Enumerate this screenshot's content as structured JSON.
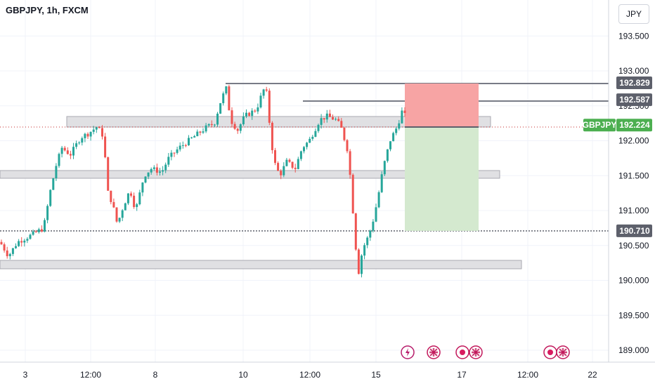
{
  "header": {
    "symbol": "GBPJPY, 1h, FXCM",
    "currency": "JPY"
  },
  "chart_data": {
    "type": "candlestick",
    "symbol": "GBPJPY",
    "interval": "1h",
    "exchange": "FXCM",
    "ylim": [
      188.9,
      193.95
    ],
    "yticks": [
      193.5,
      193.0,
      192.5,
      192.0,
      191.5,
      191.0,
      190.5,
      190.0,
      189.5,
      189.0
    ],
    "ytick_labels": [
      "193.500",
      "193.000",
      "192.500",
      "192.000",
      "191.500",
      "191.000",
      "190.500",
      "190.000",
      "189.500",
      "189.000"
    ],
    "xticks": [
      "3",
      "12:00",
      "8",
      "10",
      "12:00",
      "15",
      "17",
      "12:00",
      "22"
    ],
    "price_tags": [
      {
        "label": "192.829",
        "value": 192.829,
        "color": "#5d606b"
      },
      {
        "label": "192.587",
        "value": 192.587,
        "color": "#5d606b"
      },
      {
        "label": "192.224",
        "value": 192.224,
        "color": "#4caf50",
        "symbol": "GBPJPY"
      },
      {
        "label": "190.710",
        "value": 190.71,
        "color": "#5d606b"
      }
    ],
    "zones": [
      {
        "from": 192.2,
        "to": 192.35
      },
      {
        "from": 191.47,
        "to": 191.58
      },
      {
        "from": 190.17,
        "to": 190.3
      }
    ],
    "position": {
      "entry": 192.224,
      "stop": 192.829,
      "target": 190.71
    },
    "events": [
      "lightning-icon",
      "uk-flag-icon",
      "event-dot-icon",
      "uk-flag-icon",
      "event-dot-icon",
      "uk-flag-icon"
    ],
    "colors": {
      "up": "#26a69a",
      "down": "#ef5350",
      "loss_zone": "#f7a4a4",
      "profit_zone": "#d4e9cf",
      "last_price": "#4caf50"
    }
  }
}
